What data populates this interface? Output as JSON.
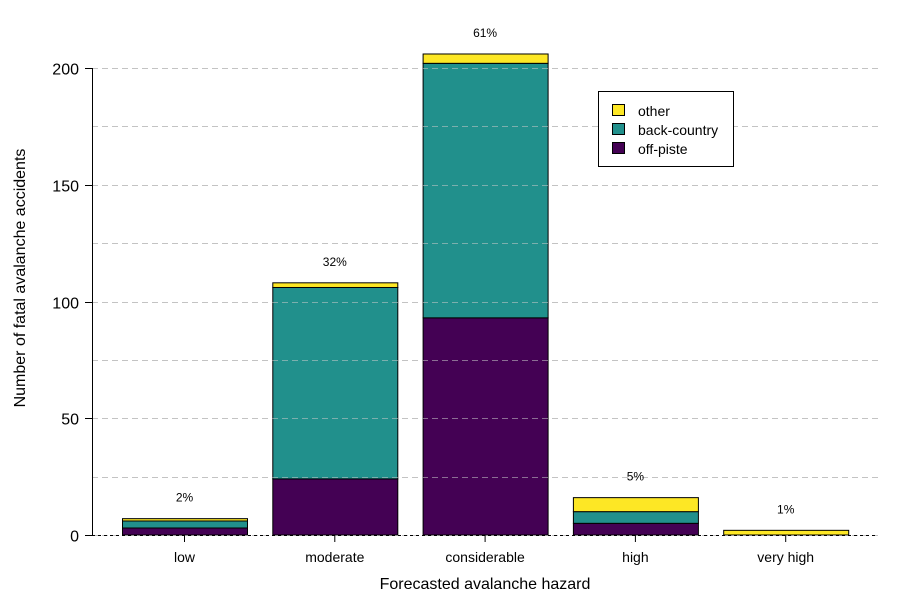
{
  "chart_data": {
    "type": "bar",
    "stacked": true,
    "title": "",
    "xlabel": "Forecasted avalanche hazard",
    "ylabel": "Number of fatal avalanche accidents",
    "ylim": [
      0,
      200
    ],
    "yticks": [
      0,
      50,
      100,
      150,
      200
    ],
    "grid": {
      "on": true,
      "style": "dashed",
      "step": 25
    },
    "categories": [
      "low",
      "moderate",
      "considerable",
      "high",
      "very high"
    ],
    "series": [
      {
        "name": "off-piste",
        "color": "#440154",
        "values": [
          3,
          24,
          93,
          5,
          0
        ]
      },
      {
        "name": "back-country",
        "color": "#21908C",
        "values": [
          3,
          82,
          109,
          5,
          0
        ]
      },
      {
        "name": "other",
        "color": "#FDE725",
        "values": [
          1,
          2,
          4,
          6,
          2
        ]
      }
    ],
    "annotations": [
      "2%",
      "32%",
      "61%",
      "5%",
      "1%"
    ],
    "legend": {
      "placement": "top-right",
      "entries": [
        "other",
        "back-country",
        "off-piste"
      ]
    }
  }
}
